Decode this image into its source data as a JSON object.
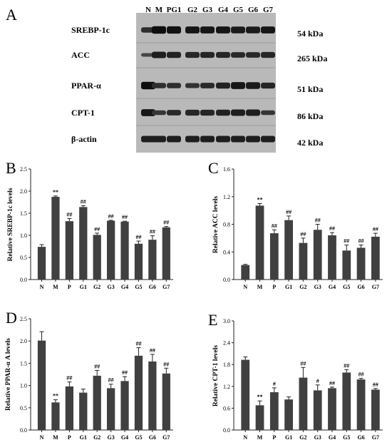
{
  "blot": {
    "panel_letter": "A",
    "lanes": [
      "N",
      "M",
      "PG1",
      "G2",
      "G3",
      "G4",
      "G5",
      "G6",
      "G7"
    ],
    "rows": [
      {
        "protein": "SREBP-1c",
        "size": "54 kDa",
        "intensity": [
          0.55,
          0.95,
          0.9,
          0.85,
          0.85,
          0.85,
          0.8,
          0.8,
          0.85
        ]
      },
      {
        "protein": "ACC",
        "size": "265 kDa",
        "intensity": [
          0.25,
          0.75,
          0.7,
          0.65,
          0.65,
          0.65,
          0.6,
          0.6,
          0.65
        ]
      },
      {
        "protein": "PPAR-α",
        "size": "51 kDa",
        "intensity": [
          0.95,
          0.55,
          0.55,
          0.5,
          0.6,
          0.7,
          0.85,
          0.8,
          0.65
        ]
      },
      {
        "protein": "CPT-1",
        "size": "86 kDa",
        "intensity": [
          0.85,
          0.45,
          0.6,
          0.65,
          0.65,
          0.7,
          0.75,
          0.75,
          0.45
        ]
      },
      {
        "protein": "β-actin",
        "size": "42 kDa",
        "intensity": [
          0.75,
          0.75,
          0.75,
          0.75,
          0.75,
          0.75,
          0.75,
          0.75,
          0.75
        ]
      }
    ]
  },
  "chart_data": [
    {
      "panel_letter": "B",
      "type": "bar",
      "ylabel": "Relative SREBP-1c levels",
      "categories": [
        "N",
        "M",
        "P",
        "G1",
        "G2",
        "G3",
        "G4",
        "G5",
        "G6",
        "G7"
      ],
      "values": [
        0.74,
        1.87,
        1.32,
        1.64,
        1.01,
        1.33,
        1.31,
        0.81,
        0.9,
        1.18
      ],
      "errors": [
        0.05,
        0.02,
        0.06,
        0.03,
        0.04,
        0.01,
        0.01,
        0.06,
        0.09,
        0.02
      ],
      "significance": [
        "",
        "**",
        "##",
        "##",
        "##",
        "##",
        "##",
        "##",
        "##",
        "##"
      ],
      "ylim": [
        0,
        2.5
      ],
      "yticks": [
        0.0,
        0.5,
        1.0,
        1.5,
        2.0,
        2.5
      ],
      "tick_format": 1
    },
    {
      "panel_letter": "C",
      "type": "bar",
      "ylabel": "Relative ACC levels",
      "categories": [
        "N",
        "M",
        "P",
        "G1",
        "G2",
        "G3",
        "G4",
        "G5",
        "G6",
        "G7"
      ],
      "values": [
        0.21,
        1.07,
        0.67,
        0.86,
        0.53,
        0.72,
        0.64,
        0.42,
        0.46,
        0.62
      ],
      "errors": [
        0.01,
        0.03,
        0.05,
        0.06,
        0.07,
        0.08,
        0.04,
        0.08,
        0.04,
        0.05
      ],
      "significance": [
        "",
        "**",
        "##",
        "##",
        "##",
        "##",
        "##",
        "##",
        "##",
        "##"
      ],
      "ylim": [
        0,
        1.6
      ],
      "yticks": [
        0.0,
        0.4,
        0.8,
        1.2,
        1.6
      ],
      "tick_format": 1
    },
    {
      "panel_letter": "D",
      "type": "bar",
      "ylabel": "Relative PPAR-α A levels",
      "categories": [
        "N",
        "M",
        "P",
        "G1",
        "G2",
        "G3",
        "G4",
        "G5",
        "G6",
        "G7"
      ],
      "values": [
        2.01,
        0.62,
        0.98,
        0.84,
        1.22,
        0.94,
        1.1,
        1.67,
        1.54,
        1.27
      ],
      "errors": [
        0.2,
        0.06,
        0.1,
        0.08,
        0.12,
        0.09,
        0.1,
        0.18,
        0.16,
        0.12
      ],
      "significance": [
        "",
        "**",
        "##",
        "",
        "##",
        "##",
        "##",
        "##",
        "##",
        "##"
      ],
      "ylim": [
        0,
        2.5
      ],
      "yticks": [
        0.0,
        0.5,
        1.0,
        1.5,
        2.0,
        2.5
      ],
      "tick_format": 1
    },
    {
      "panel_letter": "E",
      "type": "bar",
      "ylabel": "Relative CPT-1 levels",
      "categories": [
        "N",
        "M",
        "P",
        "G1",
        "G2",
        "G3",
        "G4",
        "G5",
        "G6",
        "G7"
      ],
      "values": [
        1.93,
        0.68,
        1.04,
        0.84,
        1.44,
        1.09,
        1.15,
        1.58,
        1.39,
        1.11
      ],
      "errors": [
        0.08,
        0.12,
        0.12,
        0.07,
        0.28,
        0.15,
        0.03,
        0.08,
        0.03,
        0.03
      ],
      "significance": [
        "",
        "**",
        "#",
        "",
        "##",
        "#",
        "##",
        "##",
        "##",
        "##"
      ],
      "ylim": [
        0,
        3.0
      ],
      "yticks": [
        0.0,
        0.6,
        1.2,
        1.8,
        2.4,
        3.0
      ],
      "tick_format": 1
    }
  ]
}
